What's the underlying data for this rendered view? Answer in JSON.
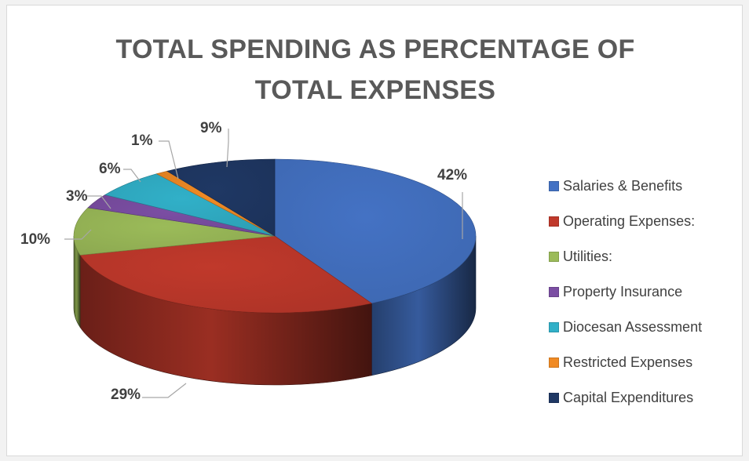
{
  "chart_data": {
    "type": "pie",
    "title_lines": [
      "TOTAL SPENDING AS PERCENTAGE OF",
      "TOTAL EXPENSES"
    ],
    "categories": [
      "Salaries & Benefits",
      "Operating Expenses:",
      "Utilities:",
      "Property Insurance",
      "Diocesan Assessment",
      "Restricted Expenses",
      "Capital Expenditures"
    ],
    "values": [
      42,
      29,
      10,
      3,
      6,
      1,
      9
    ],
    "labels": [
      "42%",
      "29%",
      "10%",
      "3%",
      "6%",
      "1%",
      "9%"
    ],
    "colors": [
      "#4472c4",
      "#c0392b",
      "#9bbb59",
      "#7b4ea3",
      "#31b0c8",
      "#f08a24",
      "#1f3864"
    ],
    "legend_position": "right",
    "style": "3d-pie"
  }
}
